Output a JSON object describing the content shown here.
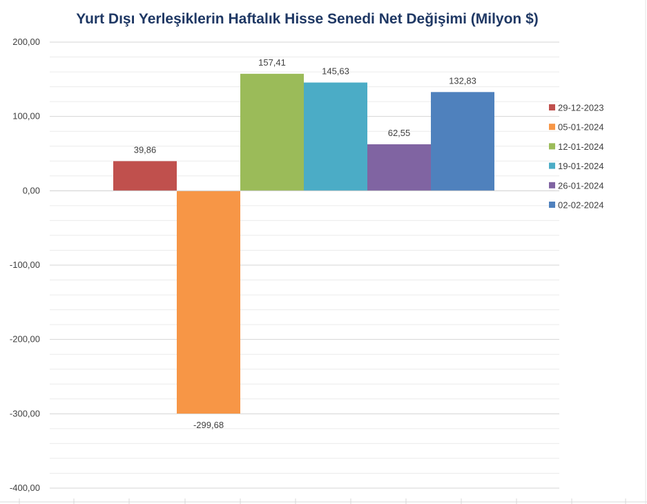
{
  "chart_data": {
    "type": "bar",
    "title": "Yurt Dışı Yerleşiklerin Haftalık Hisse Senedi Net Değişimi (Milyon $)",
    "xlabel": "",
    "ylabel": "",
    "ylim": [
      -400,
      200
    ],
    "yticks": [
      200,
      100,
      0,
      -100,
      -200,
      -300,
      -400
    ],
    "ytick_labels": [
      "200,00",
      "100,00",
      "0,00",
      "-100,00",
      "-200,00",
      "-300,00",
      "-400,00"
    ],
    "grid": true,
    "legend_position": "right",
    "series": [
      {
        "name": "29-12-2023",
        "value": 39.86,
        "label": "39,86",
        "color": "#c0504d"
      },
      {
        "name": "05-01-2024",
        "value": -299.68,
        "label": "-299,68",
        "color": "#f79646"
      },
      {
        "name": "12-01-2024",
        "value": 157.41,
        "label": "157,41",
        "color": "#9bbb59"
      },
      {
        "name": "19-01-2024",
        "value": 145.63,
        "label": "145,63",
        "color": "#4bacc6"
      },
      {
        "name": "26-01-2024",
        "value": 62.55,
        "label": "62,55",
        "color": "#8064a2"
      },
      {
        "name": "02-02-2024",
        "value": 132.83,
        "label": "132,83",
        "color": "#4f81bd"
      }
    ]
  }
}
